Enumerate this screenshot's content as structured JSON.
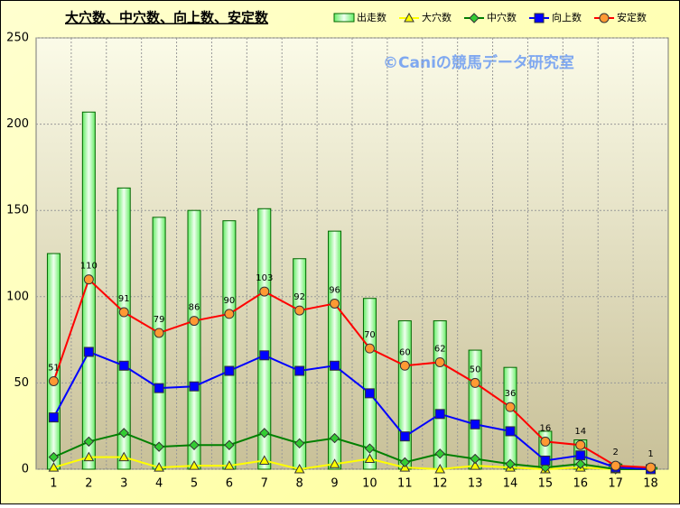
{
  "chart_data": {
    "type": "combo",
    "title": "大穴数、中穴数、向上数、安定数",
    "annotation": "©Caniの競馬データ研究室",
    "categories": [
      "1",
      "2",
      "3",
      "4",
      "5",
      "6",
      "7",
      "8",
      "9",
      "10",
      "11",
      "12",
      "13",
      "14",
      "15",
      "16",
      "17",
      "18"
    ],
    "ylim": [
      0,
      250
    ],
    "yticks": [
      0,
      50,
      100,
      150,
      200,
      250
    ],
    "grid": true,
    "legend": "top-right",
    "series": [
      {
        "name": "出走数",
        "type": "bar",
        "color": "#33cc33",
        "values": [
          125,
          207,
          163,
          146,
          150,
          144,
          151,
          122,
          138,
          99,
          86,
          86,
          69,
          59,
          22,
          17,
          3,
          1
        ]
      },
      {
        "name": "大穴数",
        "type": "line",
        "color": "#ffff00",
        "marker": "triangle",
        "marker_color": "#ffff00",
        "values": [
          1,
          7,
          7,
          1,
          2,
          2,
          5,
          0,
          3,
          6,
          1,
          0,
          2,
          1,
          0,
          1,
          0,
          0
        ]
      },
      {
        "name": "中穴数",
        "type": "line",
        "color": "#008000",
        "marker": "diamond",
        "marker_color": "#33cc33",
        "values": [
          7,
          16,
          21,
          13,
          14,
          14,
          21,
          15,
          18,
          12,
          4,
          9,
          6,
          3,
          1,
          3,
          0,
          0
        ]
      },
      {
        "name": "向上数",
        "type": "line",
        "color": "#0000ff",
        "marker": "square",
        "marker_color": "#0000ff",
        "values": [
          30,
          68,
          60,
          47,
          48,
          57,
          66,
          57,
          60,
          44,
          19,
          32,
          26,
          22,
          5,
          8,
          1,
          0
        ]
      },
      {
        "name": "安定数",
        "type": "line",
        "color": "#ff0000",
        "marker": "circle",
        "marker_color": "#ff9933",
        "data_labels": true,
        "values": [
          51,
          110,
          91,
          79,
          86,
          90,
          103,
          92,
          96,
          70,
          60,
          62,
          50,
          36,
          16,
          14,
          2,
          1
        ]
      }
    ]
  }
}
